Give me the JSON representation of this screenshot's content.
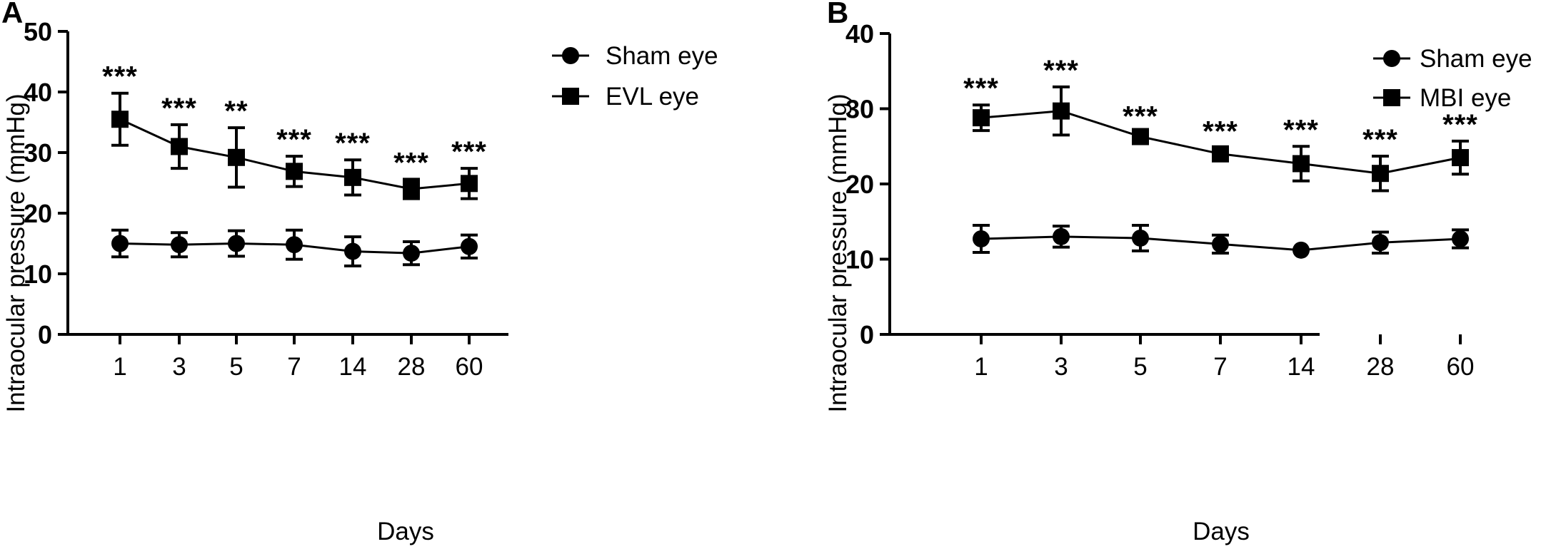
{
  "chart_data": [
    {
      "type": "line",
      "panel": "A",
      "categories": [
        "1",
        "3",
        "5",
        "7",
        "14",
        "28",
        "60"
      ],
      "xlabel": "Days",
      "ylabel": "Intraocular pressure (mmHg)",
      "ylim": [
        0,
        50
      ],
      "yticks": [
        0,
        10,
        20,
        30,
        40,
        50
      ],
      "legend_position": "top-right",
      "series": [
        {
          "name": "Sham eye",
          "marker": "circle",
          "values": [
            15.0,
            14.8,
            15.0,
            14.8,
            13.7,
            13.4,
            14.5
          ],
          "errors": [
            2.2,
            2.0,
            2.1,
            2.4,
            2.4,
            1.9,
            1.9
          ]
        },
        {
          "name": "EVL eye",
          "marker": "square",
          "values": [
            35.5,
            31.0,
            29.2,
            26.9,
            25.9,
            24.0,
            24.9
          ],
          "errors": [
            4.3,
            3.6,
            4.9,
            2.5,
            2.9,
            1.6,
            2.5
          ]
        }
      ],
      "significance": [
        "***",
        "***",
        "**",
        "***",
        "***",
        "***",
        "***"
      ]
    },
    {
      "type": "line",
      "panel": "B",
      "categories": [
        "1",
        "3",
        "5",
        "7",
        "14",
        "28",
        "60"
      ],
      "xlabel": "Days",
      "ylabel": "Intraocular pressure (mmHg)",
      "ylim": [
        0,
        40
      ],
      "yticks": [
        0,
        10,
        20,
        30,
        40
      ],
      "legend_position": "top-right",
      "series": [
        {
          "name": "Sham eye",
          "marker": "circle",
          "values": [
            12.7,
            13.0,
            12.8,
            12.0,
            11.2,
            12.2,
            12.7
          ],
          "errors": [
            1.8,
            1.4,
            1.7,
            1.2,
            0.0,
            1.4,
            1.2
          ]
        },
        {
          "name": "MBI eye",
          "marker": "square",
          "values": [
            28.8,
            29.7,
            26.3,
            24.0,
            22.7,
            21.4,
            23.5
          ],
          "errors": [
            1.7,
            3.2,
            0.5,
            0.8,
            2.3,
            2.3,
            2.2
          ]
        }
      ],
      "significance": [
        "***",
        "***",
        "***",
        "***",
        "***",
        "***",
        "***"
      ]
    }
  ]
}
